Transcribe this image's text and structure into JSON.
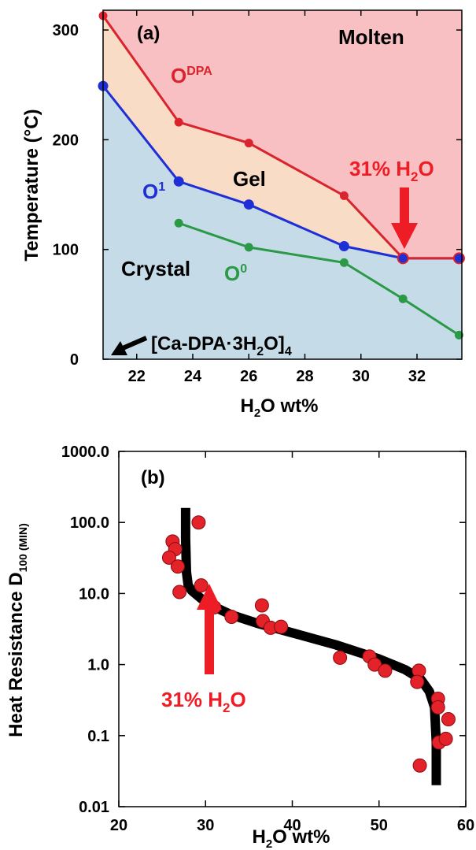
{
  "colors": {
    "molten": "#f8c0c2",
    "gel": "#f8dcc6",
    "crystal": "#c6dbe8",
    "odpa": "#d9242e",
    "o1": "#1f2fd6",
    "o0": "#2a9a47",
    "arrow_red": "#ee1c24",
    "marker_b": "#e3222a",
    "fit": "#000000"
  },
  "chart_data": [
    {
      "type": "line",
      "panel_label": "(a)",
      "xlabel_main": "H",
      "xlabel_sub": "2",
      "xlabel_rest": "O wt%",
      "ylabel": "Temperature (°C)",
      "xlim": [
        20.8,
        33.6
      ],
      "ylim": [
        0,
        318
      ],
      "xticks": [
        22,
        24,
        26,
        28,
        30,
        32
      ],
      "xtick_labels": [
        "22",
        "24",
        "26",
        "28",
        "30",
        "32"
      ],
      "yticks": [
        0,
        100,
        200,
        300
      ],
      "ytick_labels": [
        "0",
        "100",
        "200",
        "300"
      ],
      "series": [
        {
          "key": "odpa",
          "name_main": "O",
          "name_sup": "DPA",
          "x": [
            20.8,
            23.5,
            26.0,
            29.4,
            31.5,
            33.5
          ],
          "y": [
            313,
            216,
            197,
            149,
            92,
            92
          ]
        },
        {
          "key": "o1",
          "name_main": "O",
          "name_sup": "1",
          "x": [
            20.8,
            23.5,
            26.0,
            29.4,
            31.5,
            33.5
          ],
          "y": [
            249,
            162,
            141,
            103,
            92,
            92
          ]
        },
        {
          "key": "o0",
          "name_main": "O",
          "name_sup": "0",
          "x": [
            23.5,
            26.0,
            29.4,
            31.5,
            33.5
          ],
          "y": [
            124,
            102,
            88,
            55,
            22
          ]
        }
      ],
      "regions": [
        "Molten",
        "Gel",
        "Crystal"
      ],
      "annotation_main": "31% H",
      "annotation_sub": "2",
      "annotation_rest": "O",
      "compound_main": "[Ca-DPA·3H",
      "compound_sub": "2",
      "compound_mid": "O]",
      "compound_sub2": "4"
    },
    {
      "type": "scatter",
      "panel_label": "(b)",
      "xlabel_main": "H",
      "xlabel_sub": "2",
      "xlabel_rest": "O wt%",
      "ylabel_main": "Heat Resistance D",
      "ylabel_sub": "100 (MIN)",
      "scale_y": "log",
      "xlim": [
        20,
        60
      ],
      "ylim": [
        0.01,
        1000
      ],
      "xticks": [
        20,
        30,
        40,
        50,
        60
      ],
      "xtick_labels": [
        "20",
        "30",
        "40",
        "50",
        "60"
      ],
      "yticks": [
        0.01,
        0.1,
        1,
        10,
        100,
        1000
      ],
      "ytick_labels": [
        "0.01",
        "0.1",
        "1.0",
        "10.0",
        "100.0",
        "1000.0"
      ],
      "points": [
        {
          "x": 26.2,
          "y": 54
        },
        {
          "x": 26.5,
          "y": 42
        },
        {
          "x": 25.8,
          "y": 32
        },
        {
          "x": 26.8,
          "y": 24
        },
        {
          "x": 27.0,
          "y": 10.5
        },
        {
          "x": 29.2,
          "y": 100
        },
        {
          "x": 29.5,
          "y": 13
        },
        {
          "x": 31.0,
          "y": 6.4
        },
        {
          "x": 33.0,
          "y": 4.7
        },
        {
          "x": 36.5,
          "y": 6.8
        },
        {
          "x": 36.6,
          "y": 4.1
        },
        {
          "x": 37.5,
          "y": 3.3
        },
        {
          "x": 38.7,
          "y": 3.4
        },
        {
          "x": 45.5,
          "y": 1.25
        },
        {
          "x": 48.9,
          "y": 1.3
        },
        {
          "x": 49.5,
          "y": 1.0
        },
        {
          "x": 50.7,
          "y": 0.82
        },
        {
          "x": 54.6,
          "y": 0.82
        },
        {
          "x": 54.4,
          "y": 0.57
        },
        {
          "x": 56.8,
          "y": 0.33
        },
        {
          "x": 56.8,
          "y": 0.25
        },
        {
          "x": 58.0,
          "y": 0.17
        },
        {
          "x": 56.9,
          "y": 0.08
        },
        {
          "x": 57.7,
          "y": 0.09
        },
        {
          "x": 54.7,
          "y": 0.038
        }
      ],
      "fit_curve": {
        "x": [
          27.7,
          27.7,
          27.8,
          28.0,
          28.4,
          29.5,
          31.0,
          33.0,
          36.0,
          40.0,
          45.0,
          50.0,
          53.0,
          54.8,
          55.8,
          56.4,
          56.6,
          56.6
        ],
        "y": [
          160,
          60,
          20,
          13,
          11,
          8.5,
          6.5,
          5.0,
          3.8,
          2.8,
          1.9,
          1.2,
          0.85,
          0.62,
          0.42,
          0.25,
          0.08,
          0.02
        ]
      },
      "annotation_main": "31% H",
      "annotation_sub": "2",
      "annotation_rest": "O"
    }
  ]
}
